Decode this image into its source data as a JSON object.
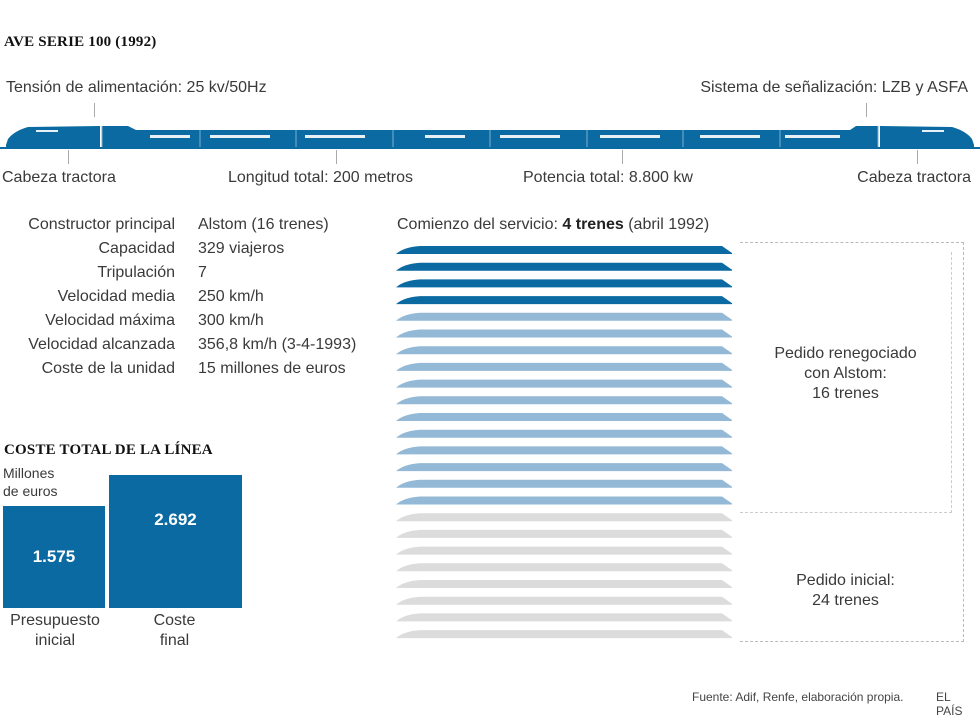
{
  "header": {
    "title": "AVE SERIE 100 (1992)"
  },
  "train_diagram": {
    "top_labels": {
      "left": "Tensión de alimentación: 25 kv/50Hz",
      "right": "Sistema de señalización: LZB y ASFA"
    },
    "bottom_labels": {
      "head_left": "Cabeza tractora",
      "length": "Longitud total: 200 metros",
      "power": "Potencia total: 8.800 kw",
      "head_right": "Cabeza tractora"
    },
    "colors": {
      "train": "#0a6aa1",
      "track": "#0a6aa1"
    }
  },
  "specs": [
    {
      "label": "Constructor principal",
      "value": "Alstom (16 trenes)"
    },
    {
      "label": "Capacidad",
      "value": "329 viajeros"
    },
    {
      "label": "Tripulación",
      "value": "7"
    },
    {
      "label": "Velocidad media",
      "value": "250 km/h"
    },
    {
      "label": "Velocidad máxima",
      "value": "300 km/h"
    },
    {
      "label": "Velocidad alcanzada",
      "value": "356,8 km/h (3-4-1993)"
    },
    {
      "label": "Coste de la unidad",
      "value": "15 millones de euros"
    }
  ],
  "cost_chart": {
    "title": "COSTE TOTAL DE LA LÍNEA",
    "unit_line1": "Millones",
    "unit_line2": "de euros",
    "color": "#0a6aa1",
    "bars": [
      {
        "value": 1575,
        "value_label": "1.575",
        "cat_line1": "Presupuesto",
        "cat_line2": "inicial"
      },
      {
        "value": 2692,
        "value_label": "2.692",
        "cat_line1": "Coste",
        "cat_line2": "final"
      }
    ]
  },
  "fleet": {
    "heading_prefix": "Comienzo del servicio: ",
    "heading_bold": "4 trenes",
    "heading_suffix": " (abril 1992)",
    "groups": [
      {
        "name": "service-start",
        "count": 4,
        "color": "#0a6aa1"
      },
      {
        "name": "renegotiated-extra",
        "count": 12,
        "color": "#93b9d6"
      },
      {
        "name": "cancelled",
        "count": 8,
        "color": "#dcdcdc"
      }
    ],
    "total": 24,
    "bracket_renegotiated": {
      "line1": "Pedido renegociado",
      "line2": "con Alstom:",
      "line3": "16 trenes"
    },
    "bracket_initial": {
      "line1": "Pedido inicial:",
      "line2": "24 trenes"
    }
  },
  "footer": {
    "source": "Fuente: Adif, Renfe, elaboración propia.",
    "brand": "EL PAÍS"
  }
}
